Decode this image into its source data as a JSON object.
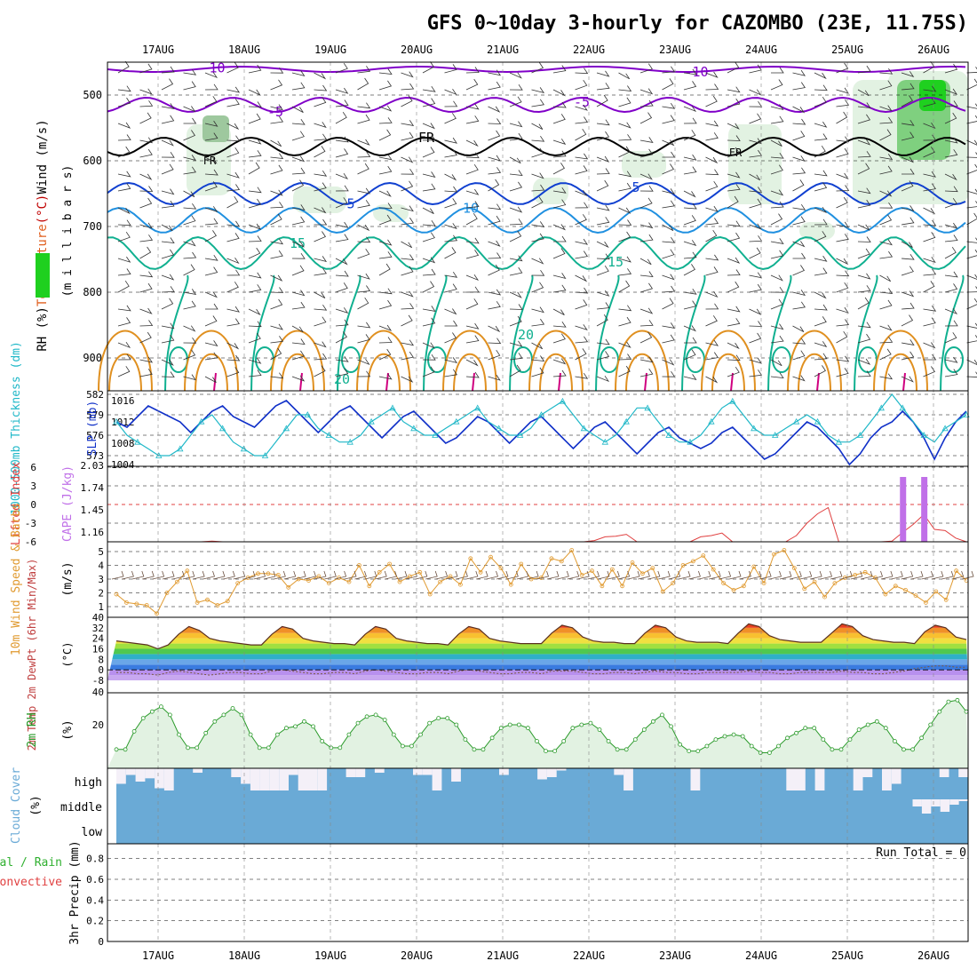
{
  "title": "GFS 0~10day 3-hourly for CAZOMBO (23E, 11.75S)",
  "dates": [
    "17AUG",
    "18AUG",
    "19AUG",
    "20AUG",
    "21AUG",
    "22AUG",
    "23AUG",
    "24AUG",
    "25AUG",
    "26AUG"
  ],
  "colors": {
    "purple": "#8000c8",
    "black": "#000000",
    "blue_dark": "#1040d0",
    "blue": "#2090e0",
    "teal": "#10b090",
    "orange": "#e09020",
    "magenta": "#d00080",
    "slp": "#1030c8",
    "thick": "#20b8c8",
    "wind": "#e09a30",
    "rh": "#2a9a2a",
    "cloud": "#6aaad6",
    "cape": "#c070e8",
    "li": "#e04040",
    "green_fill": "#1fd01f"
  },
  "cloud_levels": [
    "high",
    "middle",
    "low"
  ],
  "run_total_label": "Run Total = 0",
  "chart_data": [
    {
      "type": "contour",
      "panel": "upper-air",
      "ylabel_parts": [
        {
          "text": "RH (%)",
          "color": "#000000"
        },
        {
          "text": "Temperature",
          "color": "#e06020"
        },
        {
          "text": "(°C)",
          "color": "#c00000"
        },
        {
          "text": "Wind (m/s)",
          "color": "#000000"
        }
      ],
      "ylabel2": "(m i l l i b a r s)",
      "yticks": [
        500,
        600,
        700,
        800,
        900
      ],
      "ylim": [
        450,
        950
      ],
      "contour_labels": {
        "isotherm_minus10": "-10",
        "isotherm_minus5": "-5",
        "freezing": "FR",
        "isotherm_5": "5",
        "isotherm_10": "10",
        "isotherm_15": "15",
        "isotherm_20": "20"
      }
    },
    {
      "type": "line",
      "panel": "slp-thickness",
      "ylabel_left": "1000-500mb Thickness (dm)",
      "ylabel_right": "SLP (mb)",
      "yticks_left": [
        573,
        576,
        579,
        582
      ],
      "yticks_right": [
        1004,
        1008,
        1012,
        1016
      ],
      "series": [
        {
          "name": "SLP (mb)",
          "values": [
            1012,
            1011,
            1013,
            1015,
            1014,
            1013,
            1012,
            1010,
            1012,
            1014,
            1015,
            1013,
            1012,
            1011,
            1013,
            1015,
            1016,
            1014,
            1012,
            1010,
            1012,
            1014,
            1015,
            1013,
            1011,
            1009,
            1011,
            1013,
            1014,
            1012,
            1010,
            1008,
            1009,
            1011,
            1013,
            1012,
            1010,
            1008,
            1010,
            1012,
            1013,
            1011,
            1009,
            1007,
            1009,
            1011,
            1012,
            1010,
            1008,
            1006,
            1008,
            1010,
            1011,
            1009,
            1008,
            1007,
            1008,
            1010,
            1011,
            1009,
            1007,
            1005,
            1006,
            1008,
            1010,
            1012,
            1011,
            1009,
            1007,
            1004,
            1006,
            1009,
            1011,
            1012,
            1014,
            1012,
            1009,
            1005,
            1009,
            1012,
            1014
          ]
        },
        {
          "name": "1000-500mb Thickness (dm)",
          "values": [
            578,
            576,
            575,
            574,
            573,
            573,
            574,
            576,
            578,
            579,
            577,
            575,
            574,
            573,
            573,
            575,
            577,
            579,
            579,
            577,
            576,
            575,
            575,
            576,
            578,
            579,
            580,
            578,
            577,
            576,
            576,
            577,
            578,
            579,
            580,
            578,
            577,
            576,
            576,
            577,
            579,
            580,
            581,
            579,
            577,
            576,
            575,
            576,
            578,
            580,
            580,
            578,
            576,
            575,
            575,
            576,
            578,
            580,
            581,
            579,
            577,
            576,
            576,
            577,
            578,
            579,
            578,
            576,
            575,
            575,
            576,
            578,
            580,
            582,
            580,
            578,
            576,
            575,
            577,
            578,
            579
          ]
        }
      ]
    },
    {
      "type": "line",
      "panel": "cape-li",
      "ylabel_left": "Lifted Index",
      "ylabel_right": "CAPE (J/kg)",
      "yticks_left": [
        -6,
        -3,
        0,
        3,
        6
      ],
      "yticks_right": [
        1.16,
        1.45,
        1.74,
        2.03
      ],
      "series": [
        {
          "name": "Lifted Index",
          "values": [
            6.2,
            6.3,
            6.1,
            6.2,
            6.0,
            6.1,
            6.3,
            6.2,
            6.0,
            5.9,
            6.1,
            6.2,
            6.3,
            6.1,
            6.0,
            6.2,
            6.2,
            6.1,
            6.0,
            6.2,
            6.3,
            6.1,
            6.2,
            6.1,
            6.0,
            6.2,
            6.1,
            6.0,
            6.2,
            6.1,
            6.0,
            6.2,
            6.1,
            6.3,
            6.2,
            6.0,
            6.1,
            6.2,
            6.1,
            6.0,
            6.2,
            6.1,
            6.0,
            6.2,
            6.1,
            5.8,
            5.2,
            5.1,
            4.8,
            6.2,
            6.1,
            6.0,
            6.2,
            6.1,
            6.0,
            5.2,
            5.0,
            4.6,
            6.1,
            6.2,
            6.0,
            6.1,
            6.2,
            6.1,
            5.0,
            3.0,
            1.5,
            0.5,
            6.1,
            6.2,
            6.0,
            6.1,
            6.0,
            5.9,
            4.5,
            3.2,
            1.6,
            4.0,
            4.2,
            5.4,
            6.1
          ]
        },
        {
          "name": "CAPE (J/kg)",
          "bars": [
            {
              "index": 74,
              "value": 2.03
            },
            {
              "index": 76,
              "value": 2.03
            }
          ]
        }
      ]
    },
    {
      "type": "line",
      "panel": "wind10m",
      "ylabel": "10m Wind Speed & Barbs",
      "yunit": "(m/s)",
      "yticks": [
        1,
        2,
        3,
        4,
        5
      ],
      "series": [
        {
          "name": "10m Wind Speed",
          "values": [
            1.9,
            1.3,
            1.2,
            1.1,
            0.5,
            2.0,
            2.8,
            3.6,
            1.3,
            1.5,
            1.1,
            1.4,
            2.7,
            3.1,
            3.4,
            3.4,
            3.3,
            2.4,
            3.0,
            2.9,
            3.2,
            2.7,
            3.1,
            2.8,
            4.0,
            2.5,
            3.5,
            4.1,
            2.8,
            3.2,
            3.5,
            1.9,
            2.8,
            3.2,
            2.6,
            4.5,
            3.5,
            4.6,
            3.8,
            2.6,
            4.1,
            3.0,
            3.1,
            4.5,
            4.3,
            5.1,
            3.3,
            3.6,
            2.5,
            3.7,
            2.5,
            4.2,
            3.4,
            3.8,
            2.1,
            2.7,
            4.0,
            4.3,
            4.7,
            3.7,
            2.7,
            2.2,
            2.5,
            3.9,
            2.7,
            4.8,
            5.1,
            3.8,
            2.3,
            2.8,
            1.7,
            2.7,
            3.1,
            3.3,
            3.5,
            3.1,
            1.9,
            2.5,
            2.2,
            1.8,
            1.3,
            2.1,
            1.5,
            3.6,
            2.9
          ]
        }
      ]
    },
    {
      "type": "area",
      "panel": "temp-dewpt",
      "ylabel": "2m Temp 2m DewPt (6hr Min/Max)",
      "yunit": "(°C)",
      "yticks": [
        -8,
        -4,
        0,
        4,
        8,
        12,
        16,
        20,
        24,
        28,
        32,
        36,
        40
      ],
      "series": [
        {
          "name": "2m Temp",
          "values": [
            22,
            21,
            20,
            19,
            16,
            19,
            27,
            33,
            30,
            24,
            22,
            21,
            20,
            19,
            19,
            27,
            33,
            31,
            24,
            22,
            21,
            20,
            20,
            19,
            27,
            33,
            31,
            24,
            22,
            21,
            20,
            20,
            19,
            27,
            33,
            31,
            24,
            22,
            21,
            20,
            20,
            20,
            28,
            34,
            32,
            25,
            22,
            21,
            21,
            20,
            20,
            28,
            34,
            32,
            25,
            22,
            21,
            21,
            21,
            20,
            28,
            35,
            33,
            26,
            23,
            22,
            21,
            21,
            21,
            28,
            35,
            33,
            26,
            23,
            22,
            21,
            21,
            20,
            29,
            34,
            32,
            25,
            23
          ]
        },
        {
          "name": "2m DewPt",
          "values": [
            -2,
            -2,
            -3,
            -3,
            -4,
            -2,
            -1,
            -2,
            -3,
            -4,
            -3,
            -2,
            -2,
            -3,
            -3,
            -1,
            0,
            -1,
            -2,
            -3,
            -3,
            -2,
            -2,
            -3,
            -1,
            0,
            -1,
            -2,
            -3,
            -3,
            -2,
            -2,
            -3,
            -1,
            0,
            -1,
            -2,
            -3,
            -3,
            -2,
            -2,
            -3,
            -1,
            -1,
            -1,
            -2,
            -3,
            -3,
            -2,
            -2,
            -3,
            -2,
            -1,
            -2,
            -2,
            -3,
            -3,
            -2,
            -2,
            -2,
            -2,
            -1,
            -2,
            -2,
            -3,
            -3,
            -2,
            -2,
            -2,
            -2,
            -1,
            -2,
            -2,
            -3,
            -3,
            -2,
            -1,
            1,
            2,
            3,
            3,
            2,
            2
          ]
        }
      ]
    },
    {
      "type": "area",
      "panel": "rh2m",
      "ylabel": "2m RH",
      "yunit": "(%)",
      "yticks": [
        20,
        40
      ],
      "series": [
        {
          "name": "2m RH",
          "values": [
            5,
            5,
            16,
            24,
            28,
            31,
            26,
            14,
            6,
            6,
            15,
            22,
            26,
            30,
            26,
            14,
            6,
            6,
            14,
            18,
            19,
            22,
            19,
            10,
            6,
            6,
            14,
            21,
            25,
            26,
            23,
            14,
            7,
            7,
            14,
            21,
            24,
            24,
            20,
            11,
            5,
            5,
            12,
            18,
            20,
            20,
            18,
            10,
            4,
            4,
            10,
            18,
            20,
            21,
            17,
            10,
            5,
            5,
            11,
            17,
            22,
            26,
            19,
            8,
            4,
            4,
            7,
            11,
            13,
            14,
            13,
            7,
            3,
            3,
            7,
            12,
            15,
            18,
            18,
            11,
            5,
            5,
            11,
            17,
            20,
            22,
            18,
            10,
            5,
            5,
            12,
            20,
            28,
            34,
            35,
            28
          ]
        }
      ]
    },
    {
      "type": "area",
      "panel": "cloud",
      "ylabel": "Cloud Cover",
      "yunit": "(%)",
      "series": [
        {
          "name": "high",
          "values": [
            30,
            70,
            40,
            55,
            10,
            0,
            100,
            100,
            80,
            100,
            100,
            100,
            60,
            30,
            0,
            0,
            0,
            0,
            70,
            0,
            0,
            0,
            100,
            100,
            60,
            60,
            100,
            80,
            100,
            100,
            100,
            70,
            70,
            0,
            100,
            40,
            100,
            100,
            100,
            100,
            70,
            100,
            100,
            100,
            50,
            60,
            90,
            100,
            100,
            100,
            100,
            100,
            70,
            0,
            100,
            100,
            100,
            100,
            100,
            100,
            0,
            100,
            100,
            100,
            100,
            100,
            100,
            100,
            100,
            100,
            0,
            0,
            100,
            0,
            100,
            100,
            100,
            0,
            60,
            100,
            0,
            30,
            100,
            100,
            100,
            100,
            60,
            100,
            60
          ]
        },
        {
          "name": "middle",
          "values": [
            0,
            0,
            0,
            0,
            0,
            0,
            0,
            0,
            0,
            0,
            0,
            0,
            0,
            0,
            0,
            0,
            0,
            0,
            0,
            0,
            0,
            0,
            0,
            0,
            0,
            0,
            0,
            0,
            0,
            0,
            0,
            0,
            0,
            0,
            0,
            0,
            0,
            0,
            0,
            0,
            0,
            0,
            0,
            0,
            0,
            0,
            0,
            0,
            0,
            0,
            0,
            0,
            0,
            0,
            0,
            0,
            0,
            0,
            0,
            0,
            0,
            0,
            0,
            0,
            0,
            0,
            0,
            0,
            0,
            0,
            0,
            0,
            0,
            0,
            0,
            0,
            0,
            0,
            0,
            0,
            0,
            0,
            0,
            0,
            0,
            0,
            40,
            80,
            40,
            70,
            30,
            10
          ]
        },
        {
          "name": "low",
          "values": [
            0,
            0,
            0,
            0,
            0,
            0,
            0,
            0,
            0,
            0,
            0,
            0,
            0,
            0,
            0,
            0,
            0,
            0,
            0,
            0,
            0,
            0,
            0,
            0,
            0,
            0,
            0,
            0,
            0,
            0,
            0,
            0,
            0,
            0,
            0,
            0,
            0,
            0,
            0,
            0,
            0,
            0,
            0,
            0,
            0,
            0,
            0,
            0,
            0,
            0,
            0,
            0,
            0,
            0,
            0,
            0,
            0,
            0,
            0,
            0,
            0,
            0,
            0,
            0,
            0,
            0,
            0,
            0,
            0,
            0,
            0,
            0,
            0,
            0,
            0,
            0,
            0,
            0,
            0,
            0,
            0,
            0,
            0,
            0,
            0,
            0,
            0,
            0,
            0,
            0,
            0,
            0
          ]
        }
      ]
    },
    {
      "type": "bar",
      "panel": "precip",
      "ylabel": "3hr Precip (mm)",
      "legend": [
        "Total / Rain",
        "Convective"
      ],
      "yticks": [
        0,
        0.2,
        0.4,
        0.6,
        0.8
      ],
      "ylim": [
        0,
        0.9
      ],
      "values": []
    }
  ]
}
